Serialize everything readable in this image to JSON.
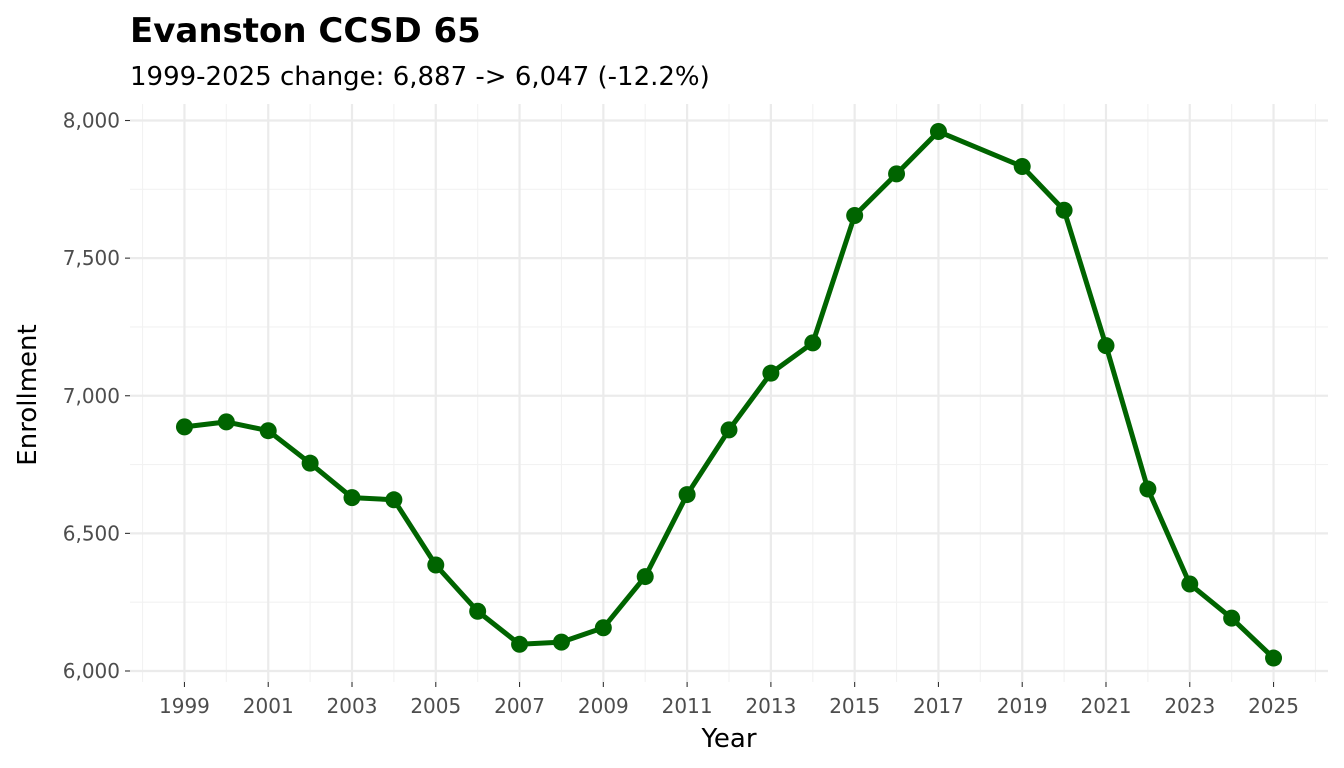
{
  "chart_data": {
    "type": "line",
    "title": "Evanston CCSD 65",
    "subtitle": "1999-2025 change: 6,887 -> 6,047 (-12.2%)",
    "xlabel": "Year",
    "ylabel": "Enrollment",
    "x": [
      1999,
      2000,
      2001,
      2002,
      2003,
      2004,
      2005,
      2006,
      2007,
      2008,
      2009,
      2010,
      2011,
      2012,
      2013,
      2014,
      2015,
      2016,
      2017,
      2019,
      2020,
      2021,
      2022,
      2023,
      2024,
      2025
    ],
    "series": [
      {
        "values": [
          6887,
          6905,
          6873,
          6755,
          6630,
          6622,
          6385,
          6217,
          6097,
          6105,
          6157,
          6343,
          6641,
          6876,
          7082,
          7192,
          7655,
          7806,
          7960,
          7833,
          7674,
          7182,
          6661,
          6316,
          6192,
          6047
        ],
        "color": "#006400"
      }
    ],
    "xlim": [
      1997.7,
      2026.3
    ],
    "ylim": [
      5960,
      8060
    ],
    "x_ticks": [
      1999,
      2001,
      2003,
      2005,
      2007,
      2009,
      2011,
      2013,
      2015,
      2017,
      2019,
      2021,
      2023,
      2025
    ],
    "x_tick_labels": [
      "1999",
      "2001",
      "2003",
      "2005",
      "2007",
      "2009",
      "2011",
      "2013",
      "2015",
      "2017",
      "2019",
      "2021",
      "2023",
      "2025"
    ],
    "y_ticks": [
      6000,
      6500,
      7000,
      7500,
      8000
    ],
    "y_tick_labels": [
      "6,000",
      "6,500",
      "7,000",
      "7,500",
      "8,000"
    ],
    "grid": true,
    "legend": "none"
  }
}
